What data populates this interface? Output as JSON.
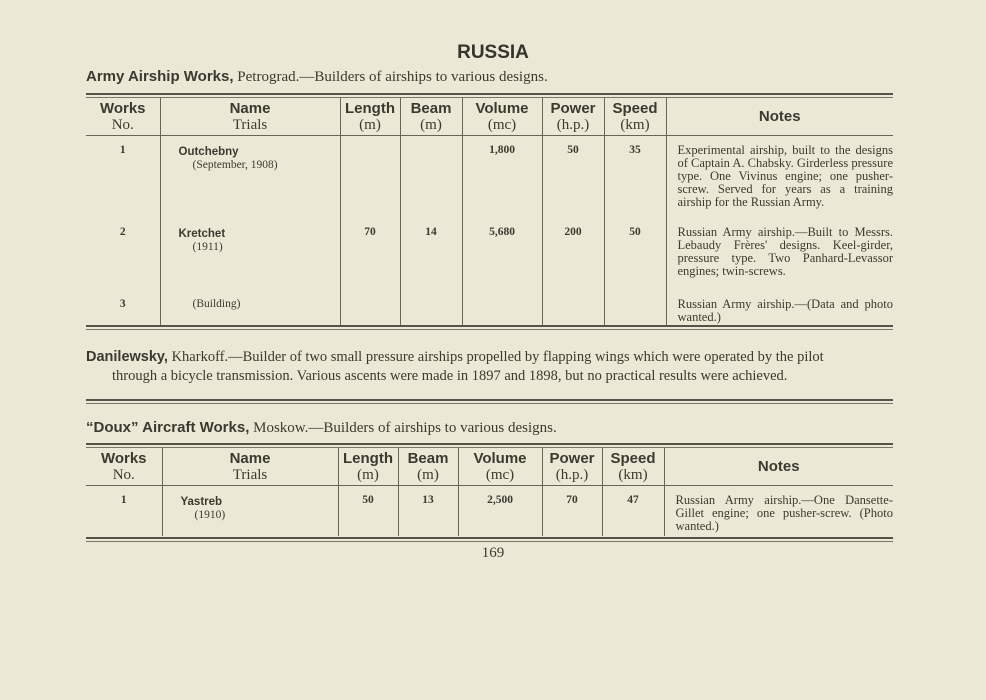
{
  "title": "RUSSIA",
  "section1": {
    "name": "Army Airship Works,",
    "place": " Petrograd.",
    "desc": "—Builders of airships to various designs."
  },
  "columns": {
    "works": "Works",
    "no": "No.",
    "name": "Name",
    "trials": "Trials",
    "length": "Length",
    "length_unit": "(m)",
    "beam": "Beam",
    "beam_unit": "(m)",
    "volume": "Volume",
    "volume_unit": "(mc)",
    "power": "Power",
    "power_unit": "(h.p.)",
    "speed": "Speed",
    "speed_unit": "(km)",
    "notes": "Notes"
  },
  "table1": [
    {
      "no": "1",
      "name": "Outchebny",
      "trials": "(September, 1908)",
      "length": "",
      "beam": "",
      "volume": "1,800",
      "power": "50",
      "speed": "35",
      "notes": "Experimental airship, built to the designs of Captain A. Chabsky. Girderless pressure type. One Vivinus engine; one pusher-screw. Served for years as a training airship for the Russian Army."
    },
    {
      "no": "2",
      "name": "Kretchet",
      "trials": "(1911)",
      "length": "70",
      "beam": "14",
      "volume": "5,680",
      "power": "200",
      "speed": "50",
      "notes": "Russian Army airship.—Built to Messrs. Lebaudy Frères' designs. Keel-girder, pressure type. Two Panhard-Levassor engines; twin-screws."
    },
    {
      "no": "3",
      "name": "",
      "trials": "(Building)",
      "length": "",
      "beam": "",
      "volume": "",
      "power": "",
      "speed": "",
      "notes": "Russian Army airship.—(Data and photo wanted.)"
    }
  ],
  "section2": {
    "name": "Danilewsky,",
    "line1": " Kharkoff.—Builder of two small pressure airships propelled by flapping wings which were operated by the pilot",
    "line2": "through a bicycle transmission.  Various ascents were made in 1897 and 1898, but no practical results were achieved."
  },
  "section3": {
    "name": "“Doux” Aircraft Works,",
    "place": " Moskow.",
    "desc": "—Builders of airships to various designs."
  },
  "table2": [
    {
      "no": "1",
      "name": "Yastreb",
      "trials": "(1910)",
      "length": "50",
      "beam": "13",
      "volume": "2,500",
      "power": "70",
      "speed": "47",
      "notes": "Russian Army airship.—One Dansette-Gillet engine; one pusher-screw. (Photo wanted.)"
    }
  ],
  "page_number": "169"
}
